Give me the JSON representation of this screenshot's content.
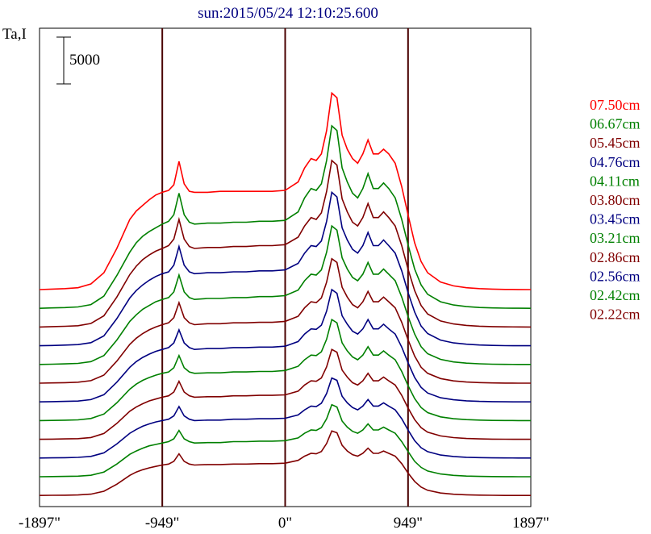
{
  "chart_data": {
    "type": "line",
    "title": "sun:2015/05/24 12:10:25.600",
    "ylabel": "Ta,I",
    "xlabel": "",
    "scale_bar_label": "5000",
    "scale_bar_value": 5000,
    "xlim": [
      -1897,
      1897
    ],
    "x_ticks": [
      {
        "value": -1897,
        "label": "-1897\""
      },
      {
        "value": -949,
        "label": "-949\""
      },
      {
        "value": 0,
        "label": "0\""
      },
      {
        "value": 949,
        "label": "949\""
      },
      {
        "value": 1897,
        "label": "1897\""
      }
    ],
    "vlines": [
      -949,
      0,
      949
    ],
    "x": [
      -1897,
      -1800,
      -1700,
      -1600,
      -1500,
      -1400,
      -1300,
      -1200,
      -1150,
      -1100,
      -1050,
      -1000,
      -949,
      -900,
      -860,
      -820,
      -780,
      -740,
      -700,
      -600,
      -500,
      -400,
      -300,
      -200,
      -100,
      0,
      100,
      150,
      200,
      240,
      280,
      320,
      360,
      400,
      440,
      480,
      520,
      560,
      600,
      640,
      680,
      720,
      760,
      800,
      850,
      900,
      949,
      1000,
      1050,
      1100,
      1200,
      1300,
      1400,
      1500,
      1600,
      1700,
      1800,
      1897
    ],
    "series": [
      {
        "name": "07.50cm",
        "color": "#ff0000",
        "offset": 22500,
        "values": [
          0,
          50,
          100,
          200,
          600,
          1800,
          4400,
          7500,
          8400,
          9000,
          9600,
          10100,
          10400,
          10600,
          11200,
          13700,
          11300,
          10500,
          10400,
          10400,
          10500,
          10500,
          10500,
          10500,
          10500,
          10600,
          11500,
          13000,
          14000,
          13800,
          14500,
          17000,
          21000,
          20500,
          16500,
          15000,
          14000,
          13500,
          14500,
          16000,
          14500,
          14500,
          15000,
          14500,
          13500,
          11000,
          8000,
          5000,
          3000,
          1800,
          800,
          400,
          200,
          100,
          50,
          20,
          10,
          0
        ]
      },
      {
        "name": "06.67cm",
        "color": "#008000",
        "offset": 20500,
        "values": [
          0,
          40,
          80,
          150,
          400,
          1300,
          3500,
          6000,
          7000,
          7700,
          8200,
          8600,
          9000,
          9300,
          10000,
          12300,
          10000,
          9200,
          9000,
          9100,
          9100,
          9200,
          9200,
          9300,
          9300,
          9400,
          10300,
          11800,
          12800,
          12600,
          13300,
          15800,
          19500,
          19000,
          15000,
          13500,
          12300,
          11800,
          12800,
          14400,
          12800,
          12800,
          13400,
          12800,
          11800,
          9500,
          6800,
          4200,
          2500,
          1500,
          700,
          350,
          180,
          90,
          40,
          15,
          5,
          0
        ]
      },
      {
        "name": "05.45cm",
        "color": "#800000",
        "offset": 18500,
        "values": [
          0,
          40,
          80,
          140,
          380,
          1200,
          3200,
          5600,
          6500,
          7200,
          7700,
          8100,
          8400,
          8700,
          9400,
          11500,
          9400,
          8600,
          8400,
          8500,
          8500,
          8600,
          8600,
          8700,
          8700,
          8800,
          9600,
          10800,
          11700,
          11500,
          12200,
          14500,
          17800,
          17300,
          13700,
          12300,
          11200,
          10800,
          11700,
          13200,
          11700,
          11700,
          12300,
          11700,
          10800,
          8700,
          6200,
          3900,
          2300,
          1400,
          650,
          330,
          170,
          85,
          40,
          15,
          5,
          0
        ]
      },
      {
        "name": "04.76cm",
        "color": "#000080",
        "offset": 16500,
        "values": [
          0,
          30,
          70,
          120,
          330,
          1050,
          2900,
          5100,
          5900,
          6500,
          7000,
          7400,
          7700,
          7900,
          8600,
          10600,
          8600,
          7900,
          7700,
          7800,
          7800,
          7900,
          7900,
          8000,
          8000,
          8100,
          8800,
          9900,
          10700,
          10600,
          11200,
          13300,
          16400,
          15900,
          12600,
          11300,
          10300,
          9900,
          10700,
          12100,
          10700,
          10700,
          11300,
          10700,
          9900,
          8000,
          5700,
          3600,
          2100,
          1300,
          600,
          300,
          160,
          80,
          35,
          12,
          4,
          0
        ]
      },
      {
        "name": "04.11cm",
        "color": "#008000",
        "offset": 14500,
        "values": [
          0,
          30,
          60,
          110,
          300,
          950,
          2600,
          4600,
          5300,
          5900,
          6300,
          6700,
          6950,
          7150,
          7750,
          9550,
          7750,
          7150,
          6950,
          7050,
          7050,
          7150,
          7150,
          7250,
          7250,
          7350,
          7950,
          8950,
          9650,
          9550,
          10100,
          12000,
          14800,
          14350,
          11400,
          10200,
          9300,
          8950,
          9650,
          10900,
          9650,
          9650,
          10200,
          9650,
          8950,
          7200,
          5150,
          3250,
          1900,
          1150,
          540,
          270,
          140,
          70,
          30,
          10,
          3,
          0
        ]
      },
      {
        "name": "03.80cm",
        "color": "#800000",
        "offset": 12500,
        "values": [
          0,
          25,
          55,
          100,
          270,
          860,
          2350,
          4150,
          4800,
          5300,
          5700,
          6000,
          6250,
          6450,
          7000,
          8600,
          7000,
          6450,
          6250,
          6350,
          6350,
          6450,
          6450,
          6500,
          6500,
          6600,
          7150,
          8050,
          8700,
          8600,
          9100,
          10800,
          13300,
          12900,
          10250,
          9200,
          8400,
          8050,
          8700,
          9800,
          8700,
          8700,
          9200,
          8700,
          8050,
          6500,
          4650,
          2900,
          1700,
          1050,
          490,
          240,
          125,
          60,
          25,
          9,
          3,
          0
        ]
      },
      {
        "name": "03.45cm",
        "color": "#000080",
        "offset": 10500,
        "values": [
          0,
          25,
          50,
          90,
          240,
          770,
          2100,
          3700,
          4300,
          4750,
          5100,
          5400,
          5600,
          5800,
          6300,
          7700,
          6300,
          5800,
          5600,
          5700,
          5700,
          5800,
          5800,
          5850,
          5850,
          5950,
          6450,
          7250,
          7800,
          7750,
          8200,
          9700,
          12000,
          11600,
          9200,
          8300,
          7550,
          7250,
          7800,
          8800,
          7800,
          7800,
          8300,
          7800,
          7250,
          5850,
          4200,
          2600,
          1550,
          950,
          440,
          220,
          110,
          55,
          22,
          8,
          2,
          0
        ]
      },
      {
        "name": "03.21cm",
        "color": "#008000",
        "offset": 8500,
        "values": [
          0,
          20,
          45,
          80,
          220,
          700,
          1900,
          3350,
          3900,
          4300,
          4600,
          4850,
          5050,
          5200,
          5650,
          6950,
          5650,
          5200,
          5050,
          5100,
          5100,
          5200,
          5200,
          5250,
          5250,
          5350,
          5800,
          6500,
          7000,
          6950,
          7350,
          8700,
          10800,
          10450,
          8300,
          7450,
          6800,
          6500,
          7000,
          7900,
          7000,
          7000,
          7450,
          7000,
          6500,
          5250,
          3750,
          2350,
          1400,
          850,
          400,
          200,
          100,
          50,
          20,
          7,
          2,
          0
        ]
      },
      {
        "name": "02.86cm",
        "color": "#800000",
        "offset": 6500,
        "values": [
          0,
          20,
          40,
          70,
          190,
          620,
          1700,
          3000,
          3450,
          3800,
          4100,
          4300,
          4500,
          4650,
          5050,
          6200,
          5050,
          4650,
          4500,
          4550,
          4550,
          4650,
          4650,
          4700,
          4700,
          4750,
          5150,
          5800,
          6250,
          6200,
          6550,
          7750,
          9600,
          9300,
          7400,
          6650,
          6050,
          5800,
          6250,
          7050,
          6250,
          6250,
          6650,
          6250,
          5800,
          4700,
          3350,
          2100,
          1250,
          760,
          360,
          180,
          90,
          45,
          18,
          6,
          2,
          0
        ]
      },
      {
        "name": "02.56cm",
        "color": "#000080",
        "offset": 4500,
        "values": [
          0,
          18,
          36,
          65,
          170,
          550,
          1500,
          2650,
          3050,
          3400,
          3650,
          3850,
          4000,
          4150,
          4500,
          5500,
          4500,
          4150,
          4000,
          4050,
          4050,
          4150,
          4150,
          4200,
          4200,
          4250,
          4600,
          5150,
          5550,
          5500,
          5850,
          6900,
          8550,
          8300,
          6600,
          5900,
          5400,
          5150,
          5550,
          6250,
          5550,
          5550,
          5900,
          5550,
          5150,
          4200,
          3000,
          1850,
          1100,
          680,
          320,
          160,
          80,
          40,
          16,
          5,
          2,
          0
        ]
      },
      {
        "name": "02.42cm",
        "color": "#008000",
        "offset": 2500,
        "values": [
          0,
          16,
          32,
          58,
          155,
          500,
          1350,
          2400,
          2750,
          3050,
          3300,
          3450,
          3600,
          3750,
          4050,
          4950,
          4050,
          3750,
          3600,
          3650,
          3650,
          3750,
          3750,
          3800,
          3800,
          3850,
          4150,
          4650,
          5000,
          4950,
          5250,
          6200,
          7700,
          7450,
          5950,
          5300,
          4850,
          4650,
          5000,
          5650,
          5000,
          5000,
          5300,
          5000,
          4650,
          3750,
          2700,
          1650,
          1000,
          610,
          290,
          145,
          72,
          36,
          14,
          5,
          2,
          0
        ]
      },
      {
        "name": "02.22cm",
        "color": "#800000",
        "offset": 500,
        "values": [
          0,
          15,
          30,
          52,
          140,
          450,
          1200,
          2150,
          2500,
          2750,
          2950,
          3100,
          3250,
          3350,
          3650,
          4450,
          3650,
          3350,
          3250,
          3300,
          3300,
          3350,
          3350,
          3400,
          3400,
          3450,
          3750,
          4200,
          4500,
          4450,
          4700,
          5550,
          6900,
          6700,
          5350,
          4750,
          4350,
          4200,
          4500,
          5050,
          4500,
          4500,
          4750,
          4500,
          4200,
          3400,
          2400,
          1500,
          900,
          550,
          260,
          130,
          65,
          32,
          13,
          4,
          1,
          0
        ]
      }
    ]
  }
}
